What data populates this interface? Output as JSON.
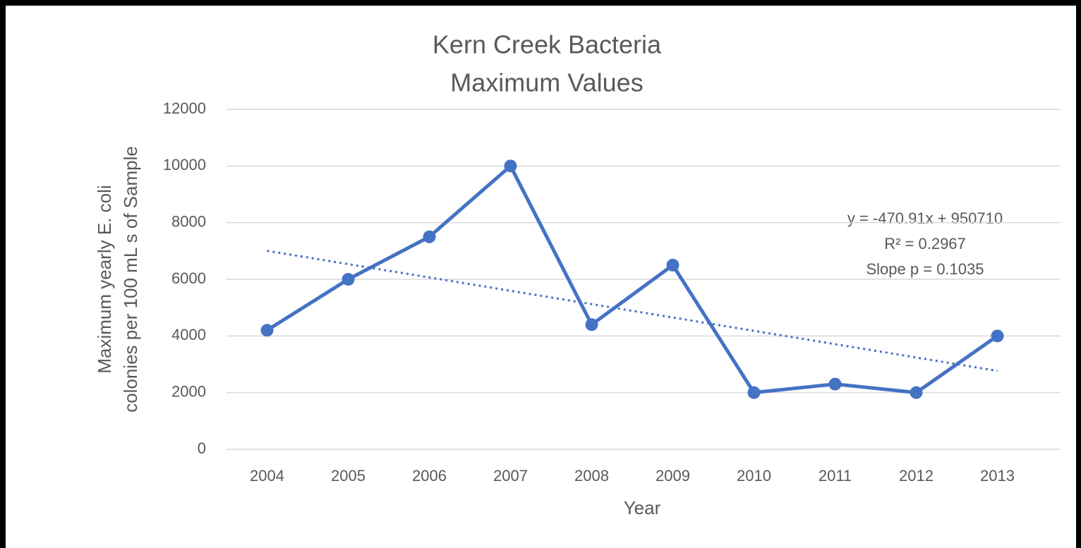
{
  "chart_data": {
    "type": "line",
    "title": [
      "Kern Creek Bacteria",
      "Maximum Values"
    ],
    "x_label": "Year",
    "y_label": [
      "Maximum yearly E. coli",
      "colonies per 100 mL s of Sample"
    ],
    "categories": [
      "2004",
      "2005",
      "2006",
      "2007",
      "2008",
      "2009",
      "2010",
      "2011",
      "2012",
      "2013"
    ],
    "series": [
      {
        "name": "Maximum yearly E. coli",
        "color": "#4472c4",
        "values": [
          4200,
          6000,
          7500,
          10000,
          4400,
          6500,
          2000,
          2300,
          2000,
          4000
        ]
      }
    ],
    "trendline": {
      "slope": -470.91,
      "intercept": 950710,
      "color": "#4472c4",
      "style": "dotted"
    },
    "annotations": [
      "y = -470.91x + 950710",
      "R² = 0.2967",
      "Slope p = 0.1035"
    ],
    "ylim": [
      0,
      12000
    ],
    "yticks": [
      0,
      2000,
      4000,
      6000,
      8000,
      10000,
      12000
    ],
    "grid": true
  }
}
